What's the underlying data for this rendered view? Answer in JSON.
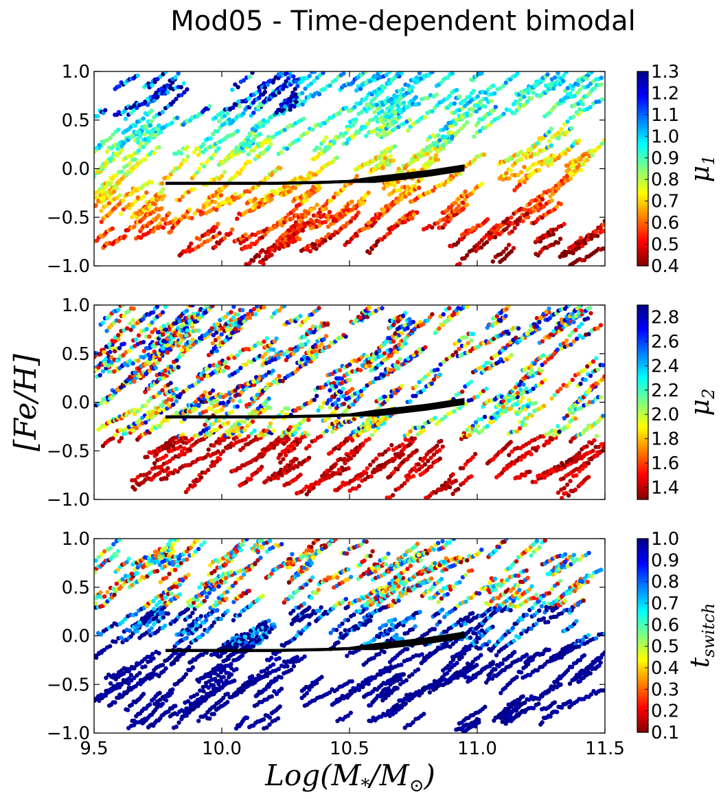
{
  "chart_data": {
    "type": "scatter",
    "title": "Mod05 - Time-dependent bimodal",
    "xlabel": "Log(M*/M☉)",
    "xlabel_parts": {
      "main": "Log(M",
      "sub1": "*",
      "mid": "/M",
      "sub2": "⊙",
      "end": ")"
    },
    "ylabel": "[Fe/H]",
    "xlim": [
      9.5,
      11.5
    ],
    "xticks": [
      9.5,
      10.0,
      10.5,
      11.0,
      11.5
    ],
    "xtick_labels": [
      "9.5",
      "10.0",
      "10.5",
      "11.0",
      "11.5"
    ],
    "ylim": [
      -1.0,
      1.0
    ],
    "yticks": [
      -1.0,
      -0.5,
      0.0,
      0.5,
      1.0
    ],
    "ytick_labels": [
      "−1.0",
      "−0.5",
      "0.0",
      "0.5",
      "1.0"
    ],
    "colormap": "jet",
    "jet_colors": [
      "#800000",
      "#ff0000",
      "#ff8000",
      "#ffff00",
      "#80ff80",
      "#00ffff",
      "#0080ff",
      "#0000ff",
      "#000080"
    ],
    "mean_relation": {
      "description": "mass-metallicity relation (black lines)",
      "x": [
        9.78,
        10.0,
        10.2,
        10.4,
        10.5,
        10.6,
        10.7,
        10.8,
        10.95
      ],
      "y": [
        -0.15,
        -0.15,
        -0.15,
        -0.14,
        -0.13,
        -0.11,
        -0.08,
        -0.05,
        0.01
      ]
    },
    "panels": [
      {
        "colorbar_label": "μ1",
        "cb_symbol": "μ",
        "cb_sub": "1",
        "vmin": 0.4,
        "vmax": 1.3,
        "cbar_ticks": [
          0.4,
          0.5,
          0.6,
          0.7,
          0.8,
          0.9,
          1.0,
          1.1,
          1.2,
          1.3
        ],
        "cbar_tick_labels": [
          "0.4",
          "0.5",
          "0.6",
          "0.7",
          "0.8",
          "0.9",
          "1.0",
          "1.1",
          "1.2",
          "1.3"
        ],
        "mode": "mu1",
        "seed": 11
      },
      {
        "colorbar_label": "μ2",
        "cb_symbol": "μ",
        "cb_sub": "2",
        "vmin": 1.3,
        "vmax": 2.9,
        "cbar_ticks": [
          1.4,
          1.6,
          1.8,
          2.0,
          2.2,
          2.4,
          2.6,
          2.8
        ],
        "cbar_tick_labels": [
          "1.4",
          "1.6",
          "1.8",
          "2.0",
          "2.2",
          "2.4",
          "2.6",
          "2.8"
        ],
        "mode": "mu2",
        "seed": 23
      },
      {
        "colorbar_label": "t_switch",
        "cb_symbol": "t",
        "cb_sub": "switch",
        "vmin": 0.1,
        "vmax": 1.0,
        "cbar_ticks": [
          0.1,
          0.2,
          0.3,
          0.4,
          0.5,
          0.6,
          0.7,
          0.8,
          0.9,
          1.0
        ],
        "cbar_tick_labels": [
          "0.1",
          "0.2",
          "0.3",
          "0.4",
          "0.5",
          "0.6",
          "0.7",
          "0.8",
          "0.9",
          "1.0"
        ],
        "mode": "tswitch",
        "seed": 37
      }
    ]
  }
}
